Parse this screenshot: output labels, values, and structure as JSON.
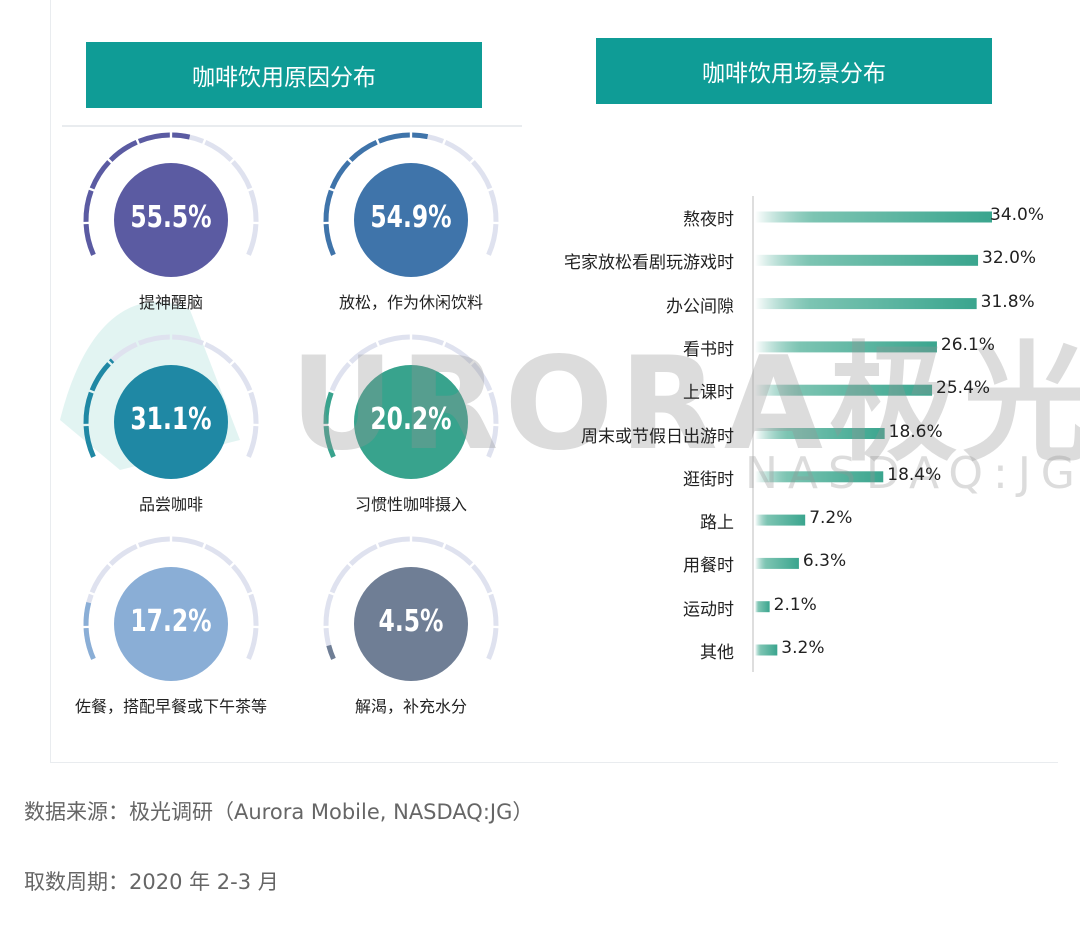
{
  "left_title": "咖啡饮用原因分布",
  "right_title": "咖啡饮用场景分布",
  "watermark": {
    "main": "URORA极光",
    "sub": "NASDAQ:JG"
  },
  "chart_data": [
    {
      "type": "gauge",
      "title": "咖啡饮用原因分布",
      "items": [
        {
          "label": "提神醒脑",
          "value": 55.5,
          "display": "55.5%",
          "color": "#5b5ba2"
        },
        {
          "label": "放松，作为休闲饮料",
          "value": 54.9,
          "display": "54.9%",
          "color": "#3f74aa"
        },
        {
          "label": "品尝咖啡",
          "value": 31.1,
          "display": "31.1%",
          "color": "#1f88a4"
        },
        {
          "label": "习惯性咖啡摄入",
          "value": 20.2,
          "display": "20.2%",
          "color": "#38a38d"
        },
        {
          "label": "佐餐，搭配早餐或下午茶等",
          "value": 17.2,
          "display": "17.2%",
          "color": "#8aaed6"
        },
        {
          "label": "解渴，补充水分",
          "value": 4.5,
          "display": "4.5%",
          "color": "#6f7e95"
        }
      ],
      "track_color": "#dfe2ef"
    },
    {
      "type": "bar",
      "orientation": "horizontal",
      "title": "咖啡饮用场景分布",
      "categories": [
        "熬夜时",
        "宅家放松看剧玩游戏时",
        "办公间隙",
        "看书时",
        "上课时",
        "周末或节假日出游时",
        "逛街时",
        "路上",
        "用餐时",
        "运动时",
        "其他"
      ],
      "values": [
        34.0,
        32.0,
        31.8,
        26.1,
        25.4,
        18.6,
        18.4,
        7.2,
        6.3,
        2.1,
        3.2
      ],
      "labels": [
        "34.0%",
        "32.0%",
        "31.8%",
        "26.1%",
        "25.4%",
        "18.6%",
        "18.4%",
        "7.2%",
        "6.3%",
        "2.1%",
        "3.2%"
      ],
      "bar_color": "#3aa58e"
    }
  ],
  "footer": {
    "source": "数据来源：极光调研（Aurora Mobile, NASDAQ:JG）",
    "period": "取数周期：2020 年 2-3 月"
  }
}
